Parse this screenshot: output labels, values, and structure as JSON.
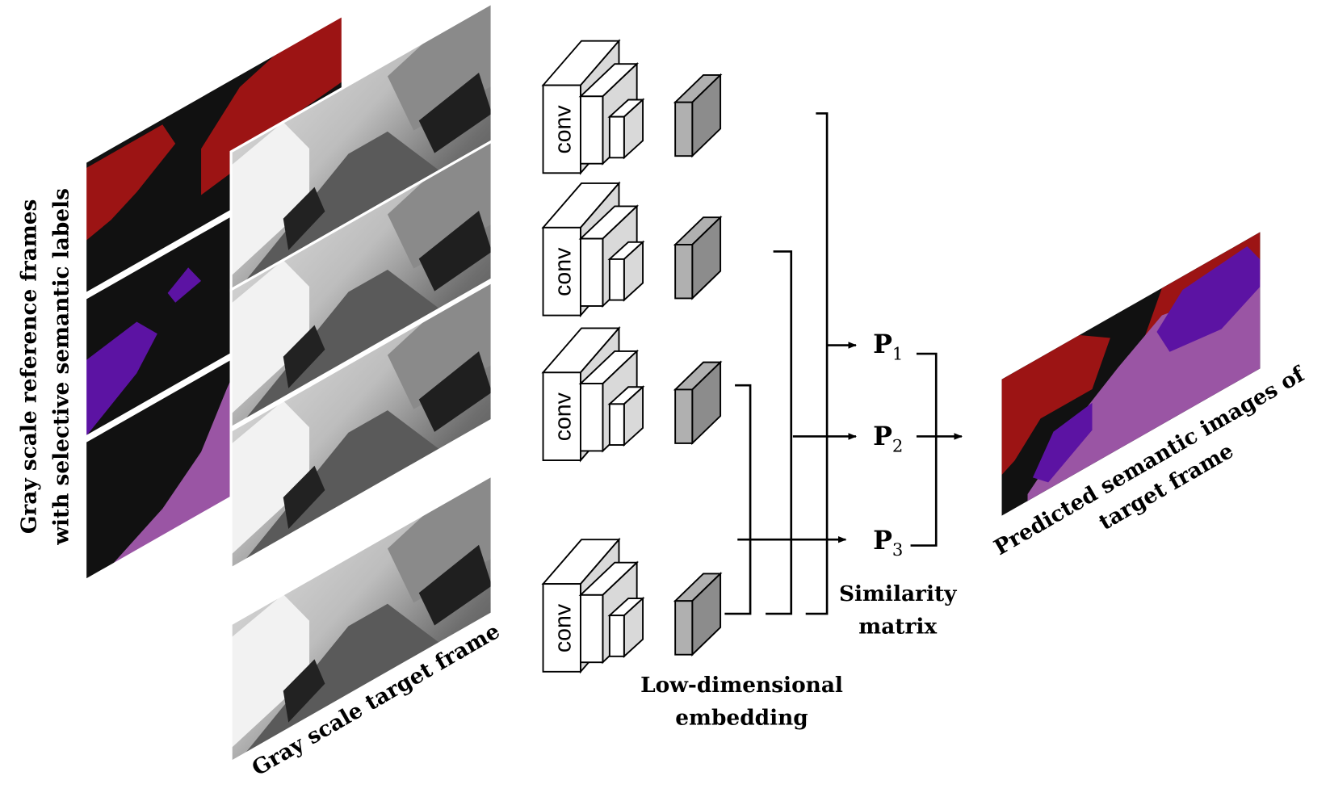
{
  "labels": {
    "reference_line1": "Gray scale reference frames",
    "reference_line2": "with selective semantic labels",
    "target": "Gray scale target frame",
    "conv": "conv",
    "embedding_line1": "Low-dimensional",
    "embedding_line2": "embedding",
    "similarity_line1": "Similarity",
    "similarity_line2": "matrix",
    "p1": "P",
    "p1_sub": "1",
    "p2": "P",
    "p2_sub": "2",
    "p3": "P",
    "p3_sub": "3",
    "output_line1": "Predicted semantic images of",
    "output_line2": "target frame"
  },
  "colors": {
    "mask_background": "#111111",
    "label_red": "#9c1414",
    "label_purple": "#5c13a3",
    "label_pink": "#9a55a4",
    "conv_face": "#ffffff",
    "conv_side": "#d9d9d9",
    "embedding_front": "#b0b0b0",
    "embedding_side": "#8c8c8c"
  }
}
